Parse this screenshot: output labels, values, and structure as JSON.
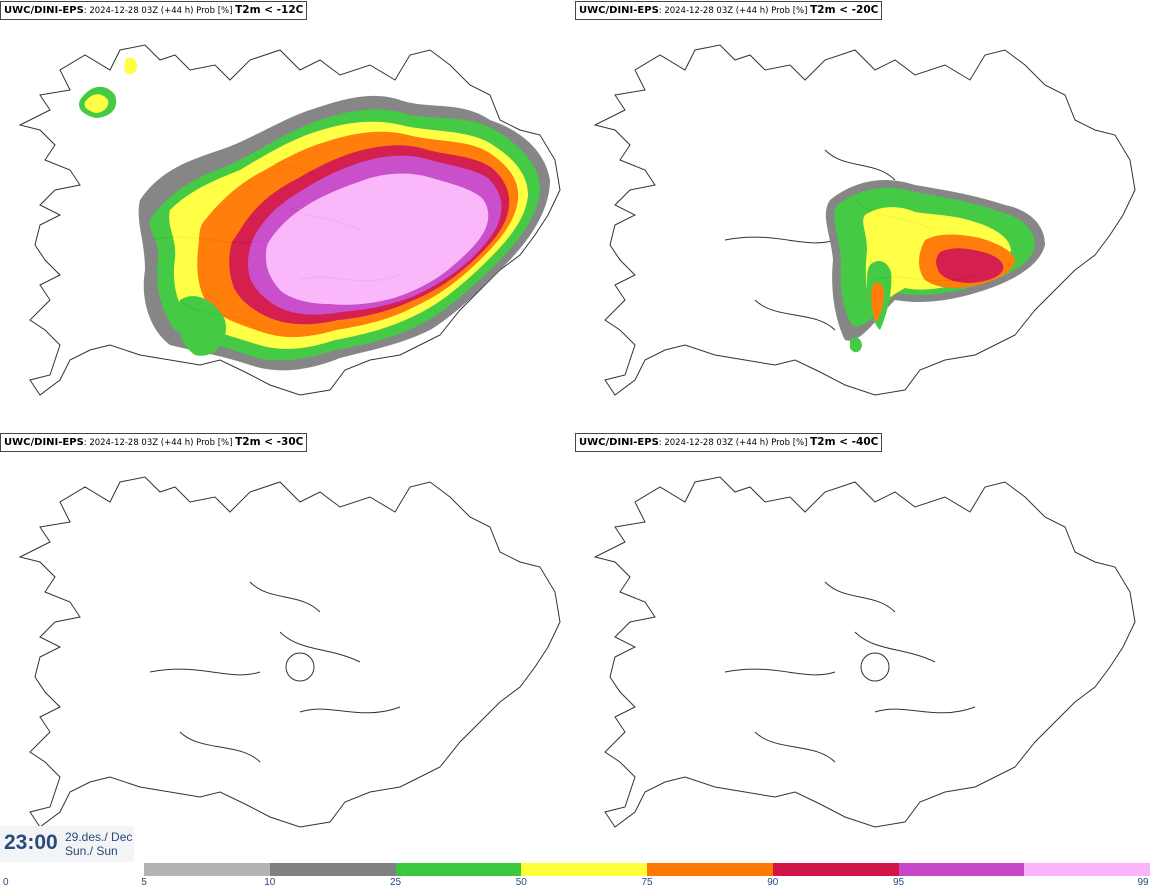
{
  "panels": [
    {
      "source": "UWC/DINI-EPS",
      "info": ": 2024-12-28 03Z (+44 h) Prob [%]",
      "variable": "T2m < -12C"
    },
    {
      "source": "UWC/DINI-EPS",
      "info": ": 2024-12-28 03Z (+44 h) Prob [%]",
      "variable": "T2m < -20C"
    },
    {
      "source": "UWC/DINI-EPS",
      "info": ": 2024-12-28 03Z (+44 h) Prob [%]",
      "variable": "T2m < -30C"
    },
    {
      "source": "UWC/DINI-EPS",
      "info": ": 2024-12-28 03Z (+44 h) Prob [%]",
      "variable": "T2m < -40C"
    }
  ],
  "time": {
    "hour": "23:00",
    "date": "29.des./ Dec",
    "day": "Sun./ Sun"
  },
  "legend": {
    "labels": [
      "0",
      "5",
      "10",
      "25",
      "50",
      "75",
      "90",
      "95",
      "99"
    ],
    "colors": [
      "#b4b4b4",
      "#808080",
      "#3cc83c",
      "#ffff3c",
      "#ff7800",
      "#d21446",
      "#c846c8",
      "#fab4fa"
    ]
  },
  "probability_levels": {
    "panel_12C": [
      "gray",
      "green",
      "yellow",
      "orange",
      "red",
      "purple",
      "pink"
    ],
    "panel_20C": [
      "gray",
      "green",
      "yellow",
      "orange",
      "red"
    ],
    "panel_30C": [],
    "panel_40C": []
  }
}
